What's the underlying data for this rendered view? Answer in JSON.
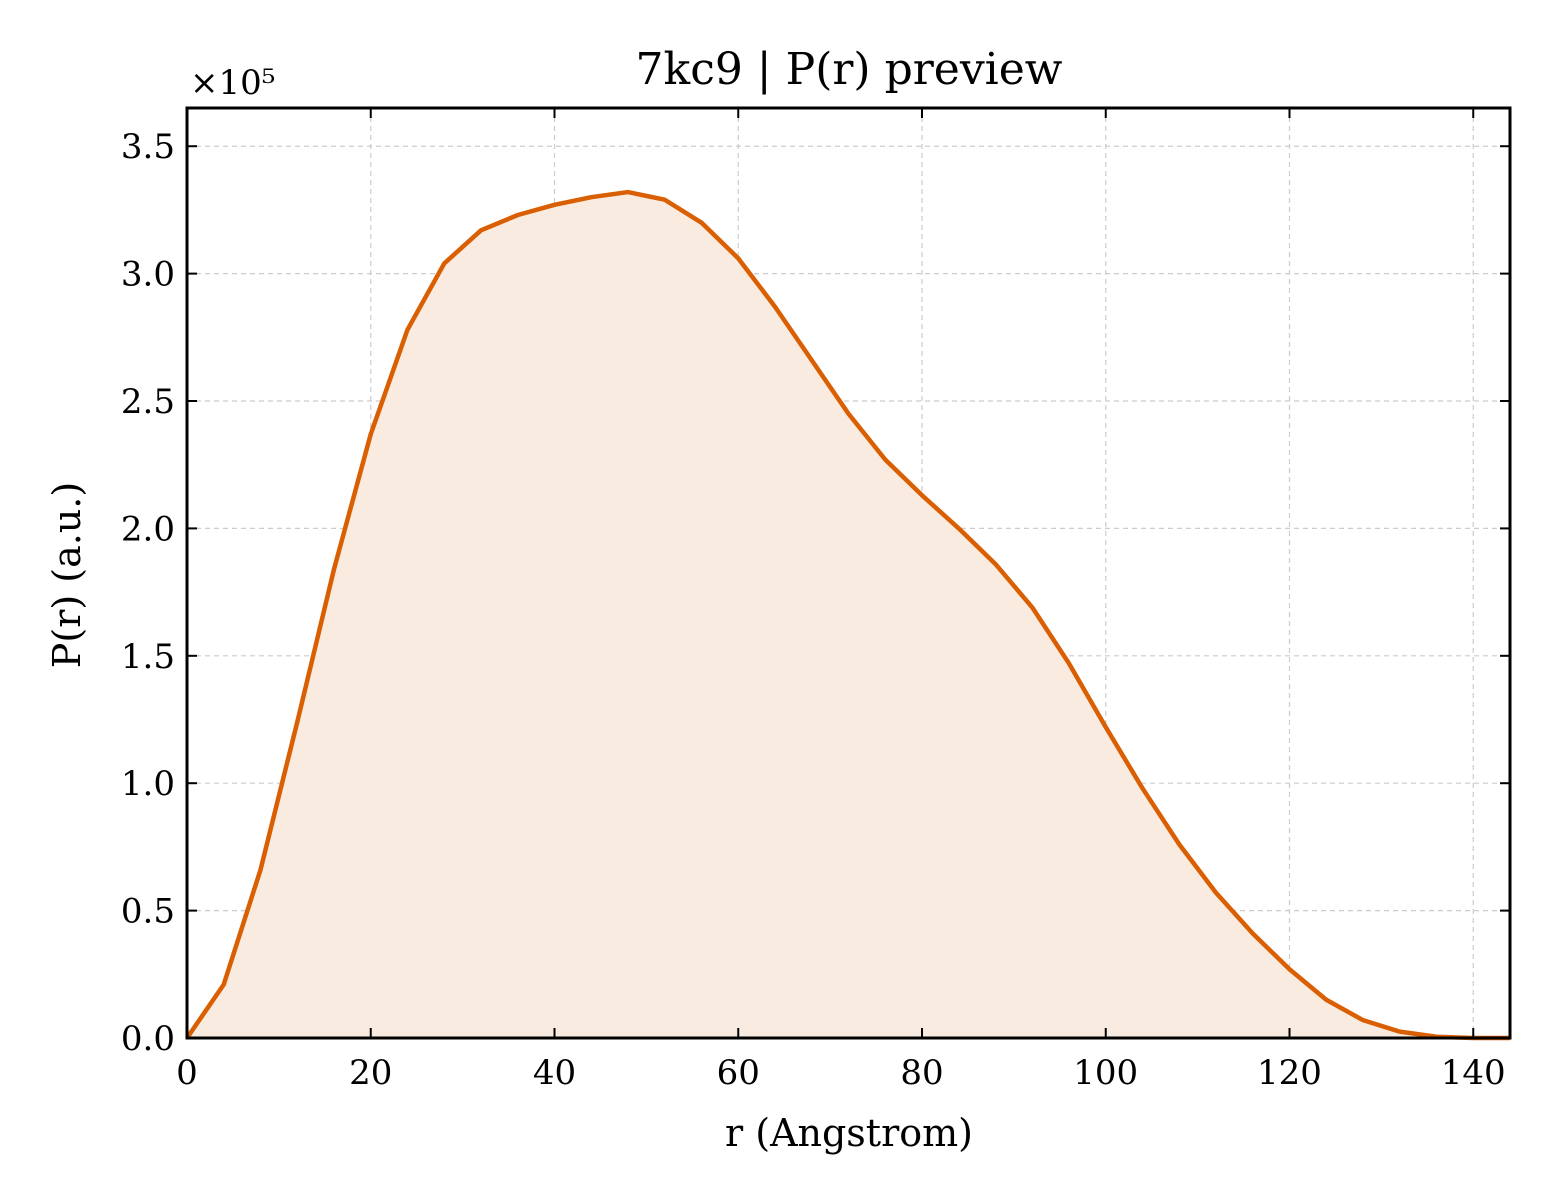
{
  "chart_data": {
    "type": "area",
    "title": "7kc9 | P(r) preview",
    "xlabel": "r (Angstrom)",
    "ylabel": "P(r) (a.u.)",
    "y_offset_label": "×10⁵",
    "xlim": [
      0,
      144
    ],
    "ylim": [
      0,
      3.65
    ],
    "x_ticks": [
      0,
      20,
      40,
      60,
      80,
      100,
      120,
      140
    ],
    "x_tick_labels": [
      "0",
      "20",
      "40",
      "60",
      "80",
      "100",
      "120",
      "140"
    ],
    "y_ticks": [
      0,
      0.5,
      1.0,
      1.5,
      2.0,
      2.5,
      3.0,
      3.5
    ],
    "y_tick_labels": [
      "0.0",
      "0.5",
      "1.0",
      "1.5",
      "2.0",
      "2.5",
      "3.0",
      "3.5"
    ],
    "grid": true,
    "line_color": "#d95f02",
    "fill_color": "#f9ebe0",
    "series": [
      {
        "x": [
          0,
          4,
          8,
          12,
          16,
          20,
          24,
          28,
          32,
          36,
          40,
          44,
          48,
          52,
          56,
          60,
          64,
          68,
          72,
          76,
          80,
          84,
          88,
          92,
          96,
          100,
          104,
          108,
          112,
          116,
          120,
          124,
          128,
          132,
          136,
          140,
          144
        ],
        "values": [
          0.0,
          0.21,
          0.66,
          1.24,
          1.84,
          2.37,
          2.78,
          3.04,
          3.17,
          3.23,
          3.27,
          3.3,
          3.32,
          3.29,
          3.2,
          3.06,
          2.87,
          2.66,
          2.45,
          2.27,
          2.13,
          2.0,
          1.86,
          1.69,
          1.47,
          1.22,
          0.98,
          0.76,
          0.57,
          0.41,
          0.27,
          0.15,
          0.07,
          0.025,
          0.005,
          0.0,
          0.0
        ]
      }
    ]
  }
}
